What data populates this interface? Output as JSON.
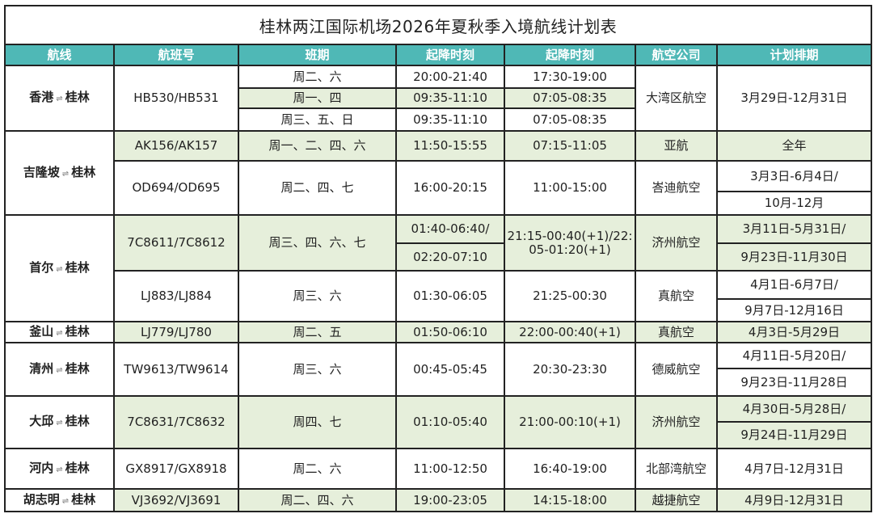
{
  "title": "桂林两江国际机场2026年夏秋季入境航线计划表",
  "headers": [
    "航线",
    "航班号",
    "班期",
    "起降时刻",
    "起降时刻",
    "航空公司",
    "计划排期"
  ],
  "route_arrow_icon": "⇌",
  "colors": {
    "header": "#4fb8b6",
    "highlight_row": "#e6efdb"
  },
  "routes": [
    {
      "from": "香港",
      "to": "桂林",
      "flight": "HB530/HB531",
      "schedules": [
        {
          "days": "周二、六",
          "time_a": "20:00-21:40",
          "time_b": "17:30-19:00"
        },
        {
          "days": "周一、四",
          "time_a": "09:35-11:10",
          "time_b": "07:05-08:35"
        },
        {
          "days": "周三、五、日",
          "time_a": "09:35-11:10",
          "time_b": "07:05-08:35"
        }
      ],
      "airline": "大湾区航空",
      "period": "3月29日-12月31日"
    },
    {
      "from": "吉隆坡",
      "to": "桂林",
      "flights": [
        {
          "flight": "AK156/AK157",
          "days": "周一、二、四、六",
          "time_a": "11:50-15:55",
          "time_b": "07:15-11:05",
          "airline": "亚航",
          "periods": [
            "全年"
          ]
        },
        {
          "flight": "OD694/OD695",
          "days": "周二、四、七",
          "time_a": "16:00-20:15",
          "time_b": "11:00-15:00",
          "airline": "峇迪航空",
          "periods": [
            "3月3日-6月4日/",
            "10月-12月"
          ]
        }
      ]
    },
    {
      "from": "首尔",
      "to": "桂林",
      "flights": [
        {
          "flight": "7C8611/7C8612",
          "days": "周三、四、六、七",
          "time_a": [
            "01:40-06:40/",
            "02:20-07:10"
          ],
          "time_b": "21:15-00:40(+1)/22:05-01:20(+1)",
          "airline": "济州航空",
          "periods": [
            "3月11日-5月31日/",
            "9月23日-11月30日"
          ]
        },
        {
          "flight": "LJ883/LJ884",
          "days": "周三、六",
          "time_a": "01:30-06:05",
          "time_b": "21:25-00:30",
          "airline": "真航空",
          "periods": [
            "4月1日-6月7日/",
            "9月7日-12月16日"
          ]
        }
      ]
    },
    {
      "from": "釜山",
      "to": "桂林",
      "flight": "LJ779/LJ780",
      "days": "周二、五",
      "time_a": "01:50-06:10",
      "time_b": "22:00-00:40(+1)",
      "airline": "真航空",
      "periods": [
        "4月3日-5月29日"
      ]
    },
    {
      "from": "清州",
      "to": "桂林",
      "flight": "TW9613/TW9614",
      "days": "周三、六",
      "time_a": "00:45-05:45",
      "time_b": "20:30-23:30",
      "airline": "德威航空",
      "periods": [
        "4月11日-5月20日/",
        "9月23日-11月28日"
      ]
    },
    {
      "from": "大邱",
      "to": "桂林",
      "flight": "7C8631/7C8632",
      "days": "周四、七",
      "time_a": "01:10-05:40",
      "time_b": "21:00-00:10(+1)",
      "airline": "济州航空",
      "periods": [
        "4月30日-5月28日/",
        "9月24日-11月29日"
      ]
    },
    {
      "from": "河内",
      "to": "桂林",
      "flight": "GX8917/GX8918",
      "days": "周二、六",
      "time_a": "11:00-12:50",
      "time_b": "16:40-19:00",
      "airline": "北部湾航空",
      "periods": [
        "4月7日-12月31日"
      ]
    },
    {
      "from": "胡志明",
      "to": "桂林",
      "flight": "VJ3692/VJ3691",
      "days": "周二、四、六",
      "time_a": "19:00-23:05",
      "time_b": "14:15-18:00",
      "airline": "越捷航空",
      "periods": [
        "4月9日-12月31日"
      ]
    }
  ]
}
